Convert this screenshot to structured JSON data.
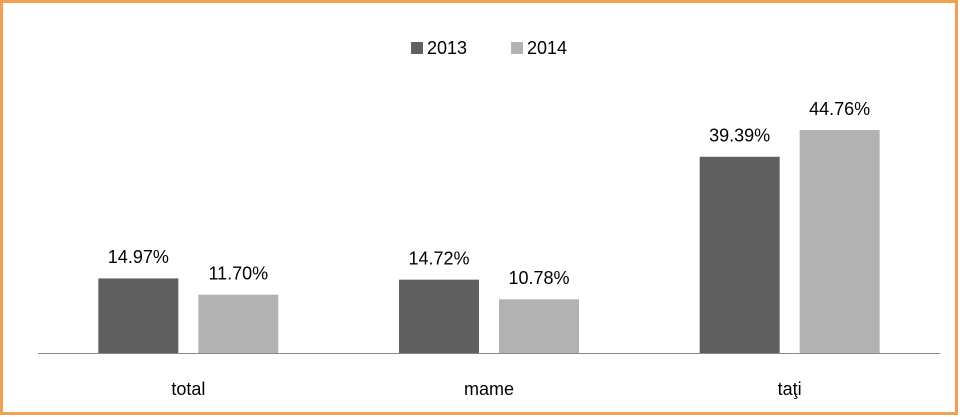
{
  "chart_data": {
    "type": "bar",
    "categories": [
      "total",
      "mame",
      "taţi"
    ],
    "series": [
      {
        "name": "2013",
        "color": "#5f5f5f",
        "values": [
          14.97,
          14.72,
          39.39
        ],
        "value_labels": [
          "14.97%",
          "14.72%",
          "39.39%"
        ]
      },
      {
        "name": "2014",
        "color": "#b2b2b2",
        "values": [
          11.7,
          10.78,
          44.76
        ],
        "value_labels": [
          "11.70%",
          "10.78%",
          "44.76%"
        ]
      }
    ],
    "legend": "top"
  }
}
